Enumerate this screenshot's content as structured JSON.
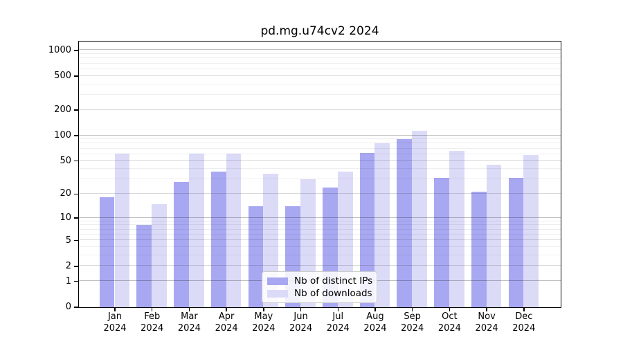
{
  "chart_data": {
    "type": "bar",
    "title": "pd.mg.u74cv2 2024",
    "year": "2024",
    "categories": [
      "Jan",
      "Feb",
      "Mar",
      "Apr",
      "May",
      "Jun",
      "Jul",
      "Aug",
      "Sep",
      "Oct",
      "Nov",
      "Dec"
    ],
    "series": [
      {
        "name": "Nb of distinct IPs",
        "color": "#a8a8f2",
        "values": [
          18,
          8,
          28,
          37,
          14,
          14,
          24,
          62,
          90,
          31,
          21,
          31
        ]
      },
      {
        "name": "Nb of downloads",
        "color": "#dbdbf8",
        "values": [
          61,
          15,
          61,
          61,
          35,
          30,
          37,
          81,
          113,
          65,
          45,
          58
        ]
      }
    ],
    "yscale": "log1p",
    "ylim": [
      0,
      1260
    ],
    "yticks": [
      1000,
      500,
      200,
      100,
      50,
      20,
      10,
      5,
      2,
      1,
      0
    ],
    "yticks_decade": [
      1,
      10,
      100,
      1000
    ],
    "yticks_mid": [
      2,
      5,
      20,
      50,
      200,
      500
    ],
    "yticks_minor": [
      3,
      4,
      6,
      7,
      8,
      9,
      30,
      40,
      60,
      70,
      80,
      90,
      300,
      400,
      600,
      700,
      800,
      900
    ],
    "grid": true,
    "legend_position": "lower center"
  }
}
